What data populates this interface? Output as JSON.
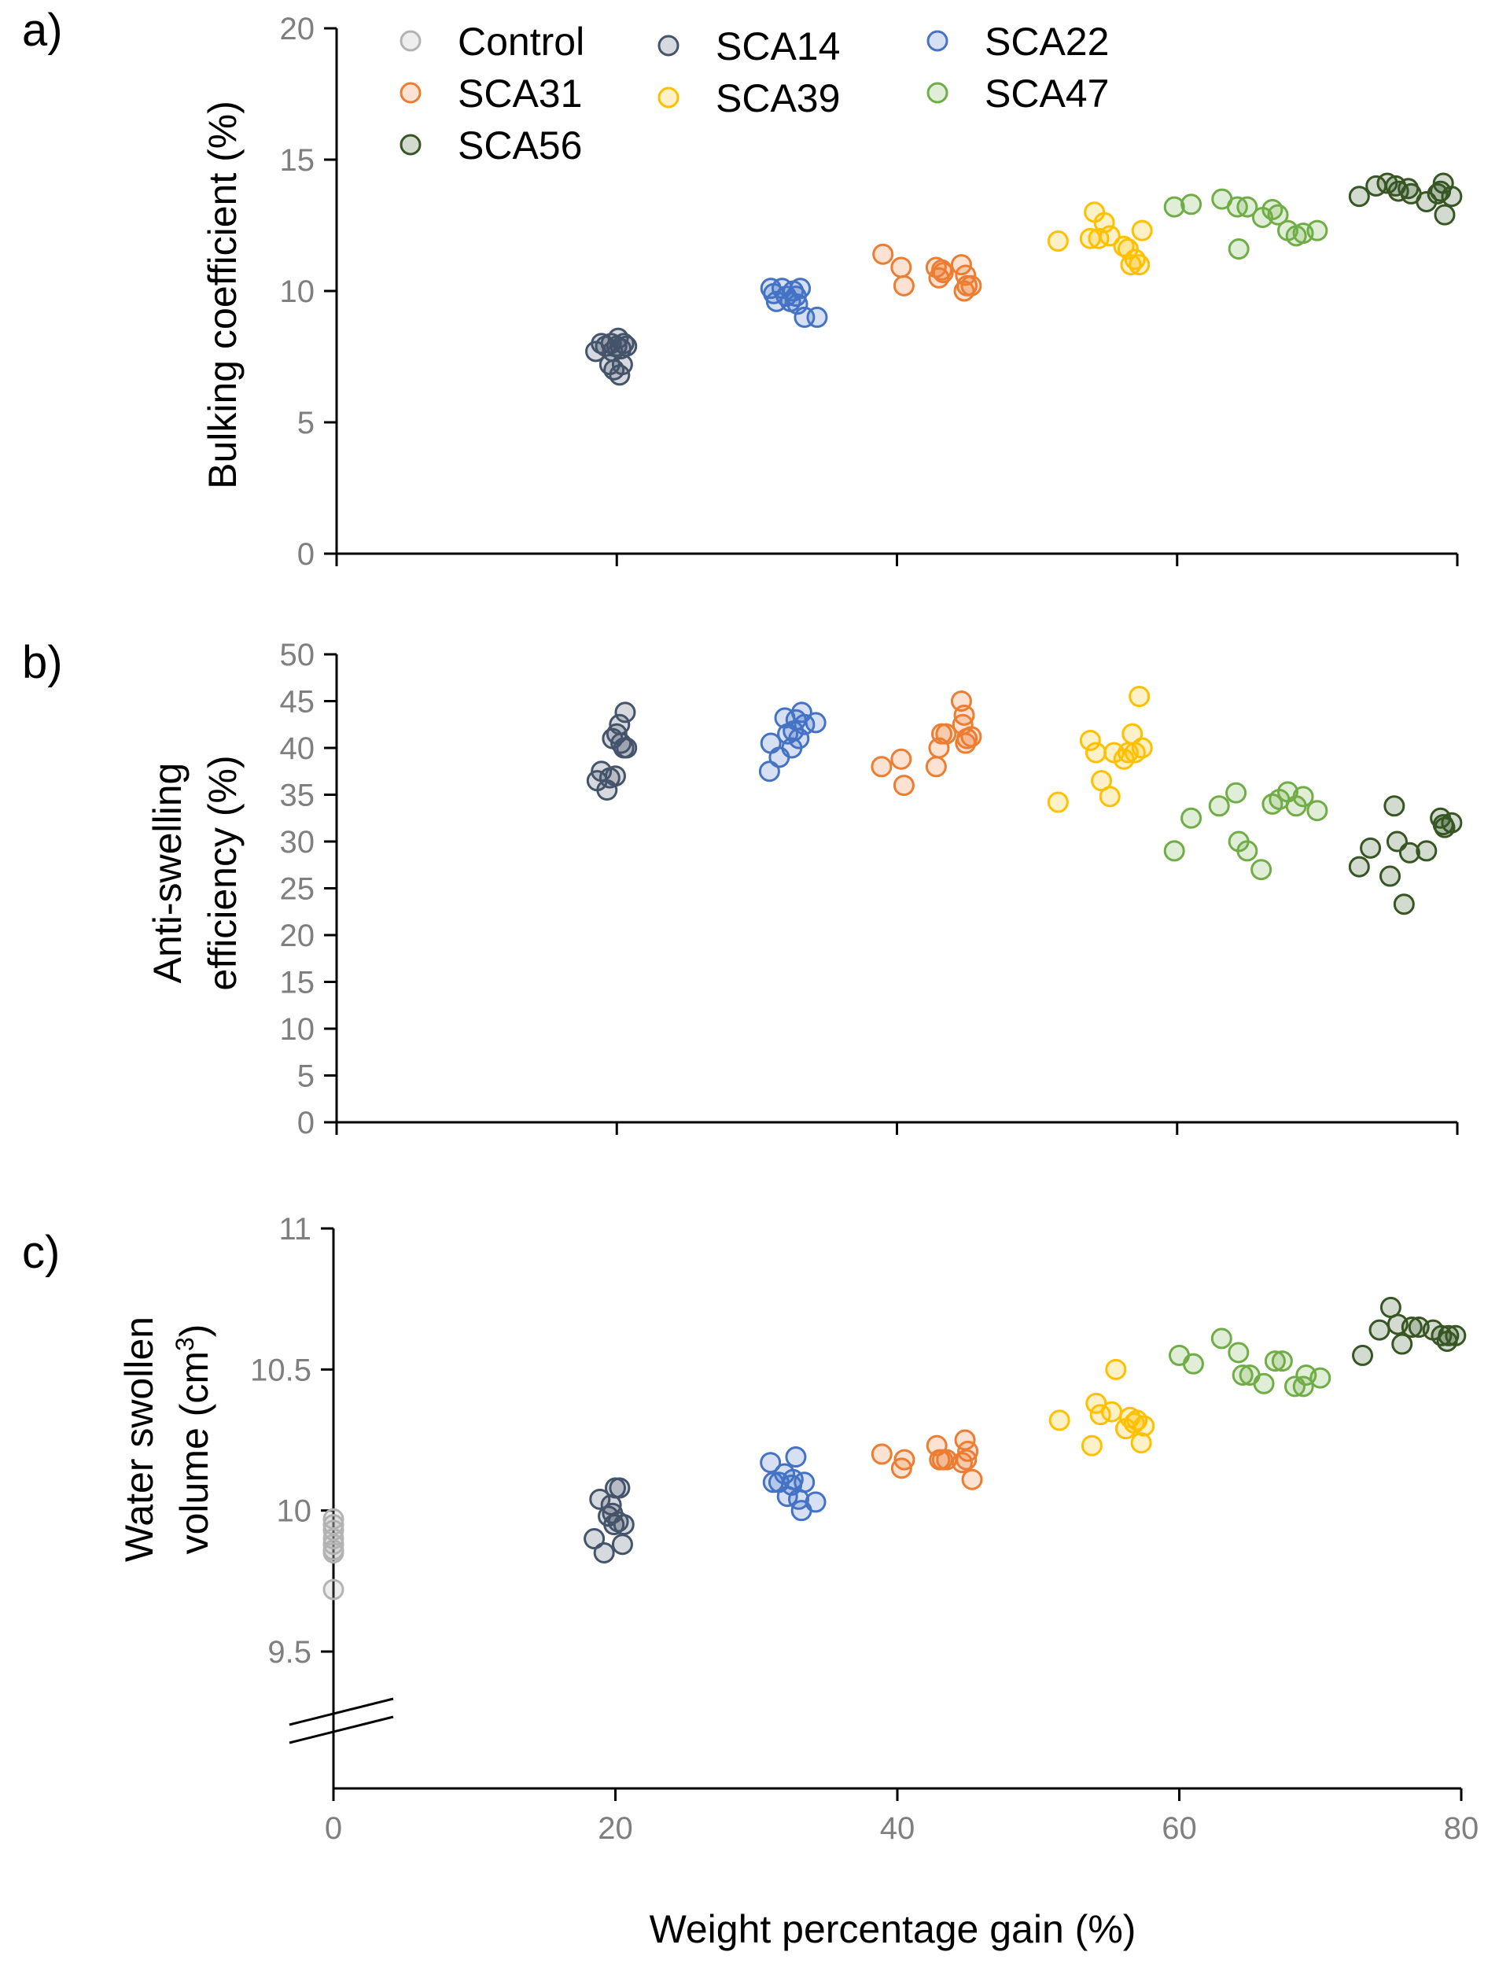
{
  "panels": [
    {
      "id": "a",
      "label": "a)"
    },
    {
      "id": "b",
      "label": "b)"
    },
    {
      "id": "c",
      "label": "c)"
    }
  ],
  "colors": {
    "Control": "#b3b3b3",
    "SCA14": "#44546a",
    "SCA22": "#4472c4",
    "SCA31": "#ed7d31",
    "SCA39": "#ffc000",
    "SCA47": "#70ad47",
    "SCA56": "#375623"
  },
  "chart_data": [
    {
      "type": "scatter",
      "panel": "a",
      "title": "",
      "xlabel": "",
      "ylabel": "Bulking coefficient (%)",
      "xlim": [
        0,
        80
      ],
      "ylim": [
        0,
        20
      ],
      "xticks": [
        0,
        20,
        40,
        60,
        80
      ],
      "yticks": [
        0,
        5,
        10,
        15,
        20
      ],
      "ytick_labels": [
        "0",
        "5",
        "10",
        "15",
        "20"
      ],
      "legend": {
        "position": "top-left",
        "entries": [
          "Control",
          "SCA14",
          "SCA22",
          "SCA31",
          "SCA39",
          "SCA47",
          "SCA56"
        ]
      },
      "series": [
        {
          "name": "SCA14",
          "x": [
            18.5,
            18.9,
            19.2,
            19.5,
            19.6,
            19.8,
            20.0,
            20.1,
            20.2,
            20.3,
            20.5,
            20.7,
            19.7,
            20.4
          ],
          "y": [
            7.7,
            8.0,
            7.9,
            7.2,
            8.0,
            7.0,
            7.9,
            8.2,
            6.8,
            7.8,
            8.0,
            7.9,
            7.7,
            7.2
          ]
        },
        {
          "name": "SCA22",
          "x": [
            31.0,
            31.4,
            31.8,
            32.1,
            32.4,
            32.6,
            32.9,
            33.1,
            33.4,
            34.3,
            31.2,
            32.8
          ],
          "y": [
            10.1,
            9.6,
            10.1,
            9.8,
            9.6,
            10.0,
            9.5,
            10.1,
            9.0,
            9.0,
            9.9,
            9.8
          ]
        },
        {
          "name": "SCA31",
          "x": [
            39.0,
            40.3,
            40.5,
            42.8,
            43.0,
            43.3,
            44.6,
            44.8,
            45.0,
            45.3,
            44.9,
            43.2
          ],
          "y": [
            11.4,
            10.9,
            10.2,
            10.9,
            10.5,
            10.7,
            11.0,
            10.0,
            10.2,
            10.2,
            10.6,
            10.8
          ]
        },
        {
          "name": "SCA39",
          "x": [
            51.5,
            53.8,
            54.1,
            54.4,
            54.8,
            55.2,
            56.2,
            56.5,
            56.7,
            57.0,
            57.3,
            57.5
          ],
          "y": [
            11.9,
            12.0,
            13.0,
            12.0,
            12.6,
            12.1,
            11.7,
            11.6,
            11.0,
            11.2,
            11.0,
            12.3
          ]
        },
        {
          "name": "SCA47",
          "x": [
            59.8,
            61.0,
            63.2,
            64.3,
            64.4,
            65.0,
            66.1,
            66.8,
            67.2,
            67.9,
            68.5,
            69.0,
            70.0
          ],
          "y": [
            13.2,
            13.3,
            13.5,
            13.2,
            11.6,
            13.2,
            12.8,
            13.1,
            12.9,
            12.3,
            12.1,
            12.2,
            12.3
          ]
        },
        {
          "name": "SCA56",
          "x": [
            73.0,
            74.2,
            75.0,
            75.6,
            75.8,
            76.5,
            76.7,
            77.8,
            78.6,
            79.0,
            79.1,
            79.6,
            78.8
          ],
          "y": [
            13.6,
            14.0,
            14.1,
            14.0,
            13.8,
            13.9,
            13.7,
            13.4,
            13.7,
            14.1,
            12.9,
            13.6,
            13.8
          ]
        }
      ]
    },
    {
      "type": "scatter",
      "panel": "b",
      "title": "",
      "xlabel": "",
      "ylabel": "Anti-swelling efficiency (%)",
      "ylabel_lines": [
        "Anti-swelling",
        "efficiency (%)"
      ],
      "xlim": [
        0,
        80
      ],
      "ylim": [
        0,
        50
      ],
      "xticks": [
        0,
        20,
        40,
        60,
        80
      ],
      "yticks": [
        0,
        5,
        10,
        15,
        20,
        25,
        30,
        35,
        40,
        45,
        50
      ],
      "ytick_labels": [
        "0",
        "5",
        "10",
        "15",
        "20",
        "25",
        "30",
        "35",
        "40",
        "45",
        "50"
      ],
      "series": [
        {
          "name": "SCA14",
          "x": [
            18.6,
            18.9,
            19.3,
            19.5,
            19.7,
            19.9,
            20.0,
            20.2,
            20.3,
            20.5,
            20.6,
            20.7
          ],
          "y": [
            36.5,
            37.5,
            35.5,
            36.8,
            41.0,
            37.0,
            41.5,
            42.5,
            40.5,
            40.0,
            43.8,
            40.0
          ]
        },
        {
          "name": "SCA22",
          "x": [
            30.9,
            31.0,
            31.6,
            32.0,
            32.2,
            32.5,
            32.8,
            33.0,
            33.2,
            33.4,
            34.2,
            32.6
          ],
          "y": [
            37.5,
            40.5,
            39.0,
            43.2,
            41.5,
            40.0,
            43.0,
            41.0,
            43.8,
            42.5,
            42.7,
            41.8
          ]
        },
        {
          "name": "SCA31",
          "x": [
            38.9,
            40.3,
            40.5,
            42.8,
            43.0,
            43.2,
            43.5,
            44.6,
            44.8,
            45.0,
            45.3,
            44.9,
            44.7
          ],
          "y": [
            38.0,
            38.8,
            36.0,
            38.0,
            40.0,
            41.5,
            41.5,
            45.0,
            43.5,
            41.0,
            41.2,
            40.5,
            42.5
          ]
        },
        {
          "name": "SCA39",
          "x": [
            51.5,
            53.8,
            54.2,
            54.6,
            55.2,
            55.5,
            56.2,
            56.5,
            56.8,
            57.0,
            57.3,
            57.5
          ],
          "y": [
            34.2,
            40.8,
            39.5,
            36.5,
            34.8,
            39.5,
            38.8,
            39.5,
            41.5,
            39.5,
            45.5,
            40.0
          ]
        },
        {
          "name": "SCA47",
          "x": [
            59.8,
            61.0,
            63.0,
            64.2,
            64.4,
            65.0,
            66.0,
            66.8,
            67.3,
            67.9,
            68.5,
            69.0,
            70.0
          ],
          "y": [
            29.0,
            32.5,
            33.8,
            35.2,
            30.0,
            29.0,
            27.0,
            34.0,
            34.5,
            35.3,
            33.8,
            34.8,
            33.3
          ]
        },
        {
          "name": "SCA56",
          "x": [
            73.0,
            73.8,
            75.2,
            75.5,
            75.7,
            76.2,
            76.6,
            77.8,
            78.8,
            79.0,
            79.6,
            79.1
          ],
          "y": [
            27.3,
            29.3,
            26.3,
            33.8,
            30.0,
            23.3,
            28.8,
            29.0,
            32.5,
            31.8,
            32.0,
            31.5
          ]
        }
      ]
    },
    {
      "type": "scatter",
      "panel": "c",
      "title": "",
      "xlabel": "Weight percentage gain (%)",
      "ylabel": "Water swollen volume (cm³)",
      "ylabel_lines": [
        "Water swollen",
        "volume (cm",
        "3",
        ")"
      ],
      "xlim": [
        0,
        80
      ],
      "ylim": [
        9.5,
        11
      ],
      "axis_break": "below 9.5",
      "xticks": [
        0,
        20,
        40,
        60,
        80
      ],
      "xtick_labels": [
        "0",
        "20",
        "40",
        "60",
        "80"
      ],
      "yticks": [
        9.5,
        10,
        10.5,
        11
      ],
      "ytick_labels": [
        "9.5",
        "10",
        "10.5",
        "11"
      ],
      "series": [
        {
          "name": "Control",
          "x": [
            0,
            0,
            0,
            0,
            0,
            0,
            0,
            0
          ],
          "y": [
            9.72,
            9.86,
            9.88,
            9.9,
            9.93,
            9.95,
            9.97,
            9.85
          ]
        },
        {
          "name": "SCA14",
          "x": [
            18.5,
            18.9,
            19.2,
            19.5,
            19.7,
            19.9,
            20.0,
            20.2,
            20.3,
            20.5,
            20.6,
            19.8
          ],
          "y": [
            9.9,
            10.04,
            9.85,
            9.98,
            10.02,
            9.95,
            10.08,
            9.96,
            10.08,
            9.88,
            9.95,
            9.99
          ]
        },
        {
          "name": "SCA22",
          "x": [
            31.0,
            31.2,
            31.6,
            32.0,
            32.2,
            32.5,
            32.8,
            33.0,
            33.2,
            33.4,
            34.2,
            32.6
          ],
          "y": [
            10.17,
            10.1,
            10.1,
            10.13,
            10.05,
            10.09,
            10.19,
            10.04,
            10.0,
            10.1,
            10.03,
            10.11
          ]
        },
        {
          "name": "SCA31",
          "x": [
            38.9,
            40.3,
            40.5,
            42.8,
            43.0,
            43.2,
            43.5,
            44.6,
            44.8,
            45.0,
            45.3,
            44.9
          ],
          "y": [
            10.2,
            10.15,
            10.18,
            10.23,
            10.18,
            10.18,
            10.18,
            10.17,
            10.25,
            10.21,
            10.11,
            10.18
          ]
        },
        {
          "name": "SCA39",
          "x": [
            51.5,
            53.8,
            54.1,
            54.4,
            55.2,
            55.5,
            56.2,
            56.5,
            56.8,
            57.0,
            57.3,
            57.5
          ],
          "y": [
            10.32,
            10.23,
            10.38,
            10.34,
            10.35,
            10.5,
            10.29,
            10.33,
            10.31,
            10.32,
            10.24,
            10.3
          ]
        },
        {
          "name": "SCA47",
          "x": [
            60.0,
            61.0,
            63.0,
            64.2,
            64.5,
            65.0,
            66.0,
            66.8,
            67.3,
            68.2,
            68.8,
            69.0,
            70.0
          ],
          "y": [
            10.55,
            10.52,
            10.61,
            10.56,
            10.48,
            10.48,
            10.45,
            10.53,
            10.53,
            10.44,
            10.44,
            10.48,
            10.47
          ]
        },
        {
          "name": "SCA56",
          "x": [
            73.0,
            74.2,
            75.0,
            75.5,
            75.8,
            76.5,
            77.0,
            78.0,
            78.6,
            79.0,
            79.6,
            79.1
          ],
          "y": [
            10.55,
            10.64,
            10.72,
            10.66,
            10.59,
            10.65,
            10.65,
            10.64,
            10.62,
            10.6,
            10.62,
            10.62
          ]
        }
      ]
    }
  ]
}
